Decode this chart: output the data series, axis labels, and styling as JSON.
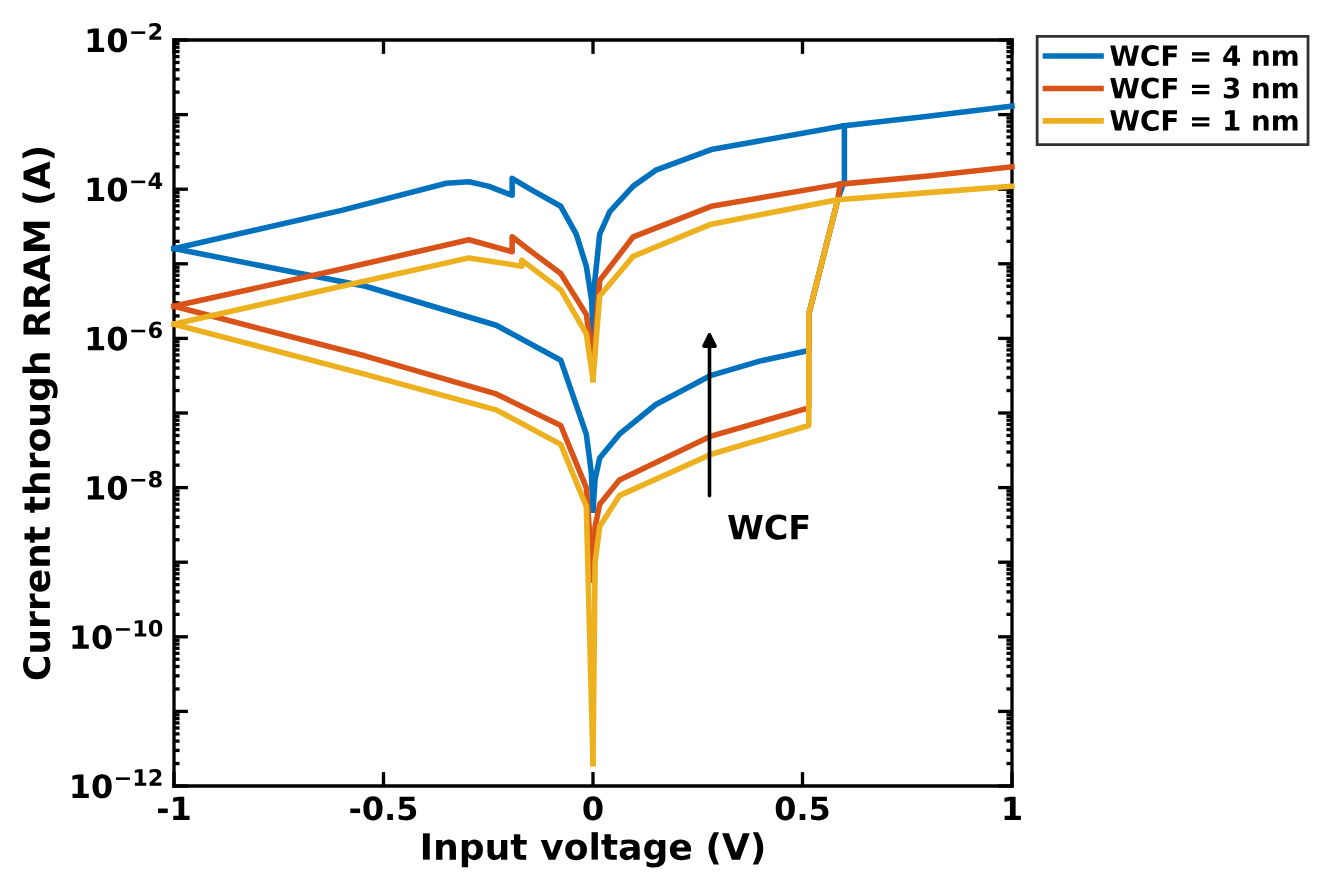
{
  "chart_data": {
    "type": "line",
    "xlabel": "Input voltage (V)",
    "ylabel": "Current through RRAM (A)",
    "log": "y",
    "grid": false,
    "legend": "top right",
    "marker": "none",
    "line_style": "solid",
    "xlim": [
      -1,
      1
    ],
    "xticks": [
      {
        "value": -1,
        "label": "-1"
      },
      {
        "value": -0.5,
        "label": "-0.5"
      },
      0,
      0.5,
      1
    ],
    "ylim": [
      1e-12,
      0.01
    ],
    "yticks": [
      {
        "value": 1e-12,
        "label": "10$^{−12}$"
      },
      {
        "value": 1e-11,
        "label": null
      },
      {
        "value": 1e-10,
        "label": "10$^{−10}$"
      },
      {
        "value": 1e-09,
        "label": null
      },
      {
        "value": 1e-08,
        "label": "10$^{−8}$"
      },
      {
        "value": 1e-07,
        "label": null
      },
      {
        "value": 1e-06,
        "label": "10$^{−6}$"
      },
      {
        "value": 1e-05,
        "label": null
      },
      {
        "value": 0.0001,
        "label": "10$^{−4}$"
      },
      {
        "value": 0.001,
        "label": null
      },
      {
        "value": 0.01,
        "label": "10$^{−2}$"
      }
    ],
    "annotations": [
      "WCF"
    ],
    "series": [
      {
        "name": "WCF = 4 nm",
        "color": "#0072bd",
        "x": [
          0,
          0.005,
          0.016,
          0.063,
          0.15,
          0.282,
          0.4,
          0.515,
          0.515,
          0.584,
          0.6,
          0.6
        ],
        "values": [
          5e-09,
          1.3e-08,
          2.5e-08,
          5.2e-08,
          1.3e-07,
          3.2e-07,
          5e-07,
          6.9e-07,
          2.1e-06,
          7.2e-05,
          0.00013,
          0.00071
        ]
      },
      {
        "color": "#0072bd",
        "x": [
          0,
          0.003,
          0.016,
          0.04,
          0.096,
          0.15,
          0.282,
          0.6,
          0.8,
          1
        ],
        "values": [
          1e-06,
          5e-06,
          2.5e-05,
          5e-05,
          0.00011,
          0.00018,
          0.00034,
          0.00071,
          0.00095,
          0.0013
        ]
      },
      {
        "color": "#0072bd",
        "x": [
          0,
          -0.003,
          -0.016,
          -0.04,
          -0.077,
          -0.15,
          -0.193,
          -0.193,
          -0.25,
          -0.296,
          -0.35,
          -0.6,
          -1
        ],
        "values": [
          1e-06,
          3.2e-06,
          9.3e-06,
          2.5e-05,
          5.9e-05,
          0.0001,
          0.00014,
          8.3e-05,
          0.00011,
          0.000126,
          0.00012,
          5.2e-05,
          1.6e-05
        ]
      },
      {
        "color": "#0072bd",
        "x": [
          0,
          -0.004,
          -0.016,
          -0.077,
          -0.231,
          -0.543,
          -1
        ],
        "values": [
          5e-09,
          1.6e-08,
          5.2e-08,
          5.1e-07,
          1.5e-06,
          5e-06,
          1.6e-05
        ]
      },
      {
        "name": "WCF = 3 nm",
        "color": "#d95319",
        "x": [
          0,
          0.005,
          0.016,
          0.063,
          0.282,
          0.515,
          0.515,
          0.584,
          0.59
        ],
        "values": [
          5.8e-10,
          3e-09,
          6e-09,
          1.26e-08,
          4.9e-08,
          1.17e-07,
          2.1e-06,
          7.2e-05,
          0.000117
        ]
      },
      {
        "color": "#d95319",
        "x": [
          0,
          0.016,
          0.096,
          0.282,
          0.59,
          0.8,
          1
        ],
        "values": [
          5.1e-07,
          6e-06,
          2.3e-05,
          5.9e-05,
          0.000117,
          0.00015,
          0.0002
        ]
      },
      {
        "color": "#d95319",
        "x": [
          0,
          -0.016,
          -0.077,
          -0.15,
          -0.193,
          -0.193,
          -0.296,
          -0.6,
          -1
        ],
        "values": [
          5.1e-07,
          2.1e-06,
          7.4e-06,
          1.5e-05,
          2.3e-05,
          1.45e-05,
          2.1e-05,
          8.5e-06,
          2.7e-06
        ]
      },
      {
        "color": "#d95319",
        "x": [
          0,
          -0.016,
          -0.077,
          -0.231,
          -0.543,
          -1
        ],
        "values": [
          5.8e-10,
          1e-08,
          6.8e-08,
          1.8e-07,
          5.8e-07,
          2.7e-06
        ]
      },
      {
        "name": "WCF = 1 nm",
        "color": "#edb120",
        "x": [
          0,
          0.005,
          0.016,
          0.063,
          0.282,
          0.515,
          0.515,
          0.584
        ],
        "values": [
          2e-12,
          1e-09,
          3e-09,
          7.8e-09,
          2.8e-08,
          6.8e-08,
          2.1e-06,
          7.2e-05
        ]
      },
      {
        "color": "#edb120",
        "x": [
          0,
          0.016,
          0.096,
          0.282,
          0.584,
          0.8,
          1
        ],
        "values": [
          2.8e-07,
          3.7e-06,
          1.26e-05,
          3.4e-05,
          7.2e-05,
          9e-05,
          0.00011
        ]
      },
      {
        "color": "#edb120",
        "x": [
          0,
          -0.016,
          -0.077,
          -0.17,
          -0.17,
          -0.296,
          -0.6,
          -1
        ],
        "values": [
          2.8e-07,
          1.15e-06,
          4.5e-06,
          1.12e-05,
          9.3e-06,
          1.2e-05,
          5e-06,
          1.55e-06
        ]
      },
      {
        "color": "#edb120",
        "x": [
          0,
          -0.016,
          -0.077,
          -0.231,
          -0.543,
          -1
        ],
        "values": [
          2e-12,
          5.6e-09,
          3.8e-08,
          1.1e-07,
          3.3e-07,
          1.55e-06
        ]
      }
    ]
  }
}
